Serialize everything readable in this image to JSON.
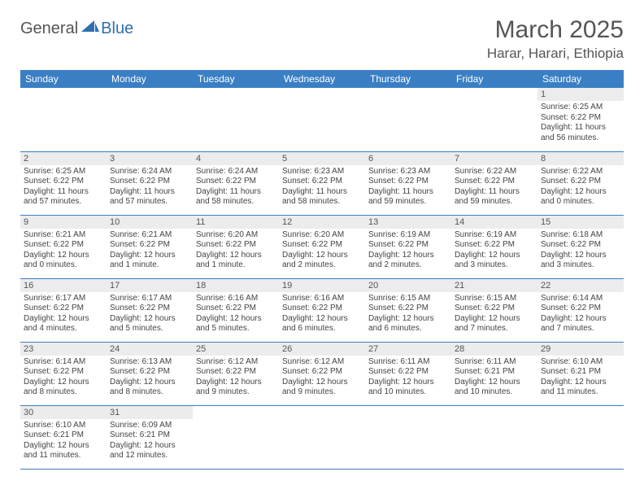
{
  "logo": {
    "text1": "General",
    "text2": "Blue",
    "color1": "#666666",
    "color2": "#2f6fb0"
  },
  "title": "March 2025",
  "location": "Harar, Harari, Ethiopia",
  "headerColor": "#3a7fc4",
  "dayHeaderBg": "#ececec",
  "days": [
    "Sunday",
    "Monday",
    "Tuesday",
    "Wednesday",
    "Thursday",
    "Friday",
    "Saturday"
  ],
  "weeks": [
    [
      null,
      null,
      null,
      null,
      null,
      null,
      {
        "n": "1",
        "sr": "6:25 AM",
        "ss": "6:22 PM",
        "dl": "11 hours and 56 minutes."
      }
    ],
    [
      {
        "n": "2",
        "sr": "6:25 AM",
        "ss": "6:22 PM",
        "dl": "11 hours and 57 minutes."
      },
      {
        "n": "3",
        "sr": "6:24 AM",
        "ss": "6:22 PM",
        "dl": "11 hours and 57 minutes."
      },
      {
        "n": "4",
        "sr": "6:24 AM",
        "ss": "6:22 PM",
        "dl": "11 hours and 58 minutes."
      },
      {
        "n": "5",
        "sr": "6:23 AM",
        "ss": "6:22 PM",
        "dl": "11 hours and 58 minutes."
      },
      {
        "n": "6",
        "sr": "6:23 AM",
        "ss": "6:22 PM",
        "dl": "11 hours and 59 minutes."
      },
      {
        "n": "7",
        "sr": "6:22 AM",
        "ss": "6:22 PM",
        "dl": "11 hours and 59 minutes."
      },
      {
        "n": "8",
        "sr": "6:22 AM",
        "ss": "6:22 PM",
        "dl": "12 hours and 0 minutes."
      }
    ],
    [
      {
        "n": "9",
        "sr": "6:21 AM",
        "ss": "6:22 PM",
        "dl": "12 hours and 0 minutes."
      },
      {
        "n": "10",
        "sr": "6:21 AM",
        "ss": "6:22 PM",
        "dl": "12 hours and 1 minute."
      },
      {
        "n": "11",
        "sr": "6:20 AM",
        "ss": "6:22 PM",
        "dl": "12 hours and 1 minute."
      },
      {
        "n": "12",
        "sr": "6:20 AM",
        "ss": "6:22 PM",
        "dl": "12 hours and 2 minutes."
      },
      {
        "n": "13",
        "sr": "6:19 AM",
        "ss": "6:22 PM",
        "dl": "12 hours and 2 minutes."
      },
      {
        "n": "14",
        "sr": "6:19 AM",
        "ss": "6:22 PM",
        "dl": "12 hours and 3 minutes."
      },
      {
        "n": "15",
        "sr": "6:18 AM",
        "ss": "6:22 PM",
        "dl": "12 hours and 3 minutes."
      }
    ],
    [
      {
        "n": "16",
        "sr": "6:17 AM",
        "ss": "6:22 PM",
        "dl": "12 hours and 4 minutes."
      },
      {
        "n": "17",
        "sr": "6:17 AM",
        "ss": "6:22 PM",
        "dl": "12 hours and 5 minutes."
      },
      {
        "n": "18",
        "sr": "6:16 AM",
        "ss": "6:22 PM",
        "dl": "12 hours and 5 minutes."
      },
      {
        "n": "19",
        "sr": "6:16 AM",
        "ss": "6:22 PM",
        "dl": "12 hours and 6 minutes."
      },
      {
        "n": "20",
        "sr": "6:15 AM",
        "ss": "6:22 PM",
        "dl": "12 hours and 6 minutes."
      },
      {
        "n": "21",
        "sr": "6:15 AM",
        "ss": "6:22 PM",
        "dl": "12 hours and 7 minutes."
      },
      {
        "n": "22",
        "sr": "6:14 AM",
        "ss": "6:22 PM",
        "dl": "12 hours and 7 minutes."
      }
    ],
    [
      {
        "n": "23",
        "sr": "6:14 AM",
        "ss": "6:22 PM",
        "dl": "12 hours and 8 minutes."
      },
      {
        "n": "24",
        "sr": "6:13 AM",
        "ss": "6:22 PM",
        "dl": "12 hours and 8 minutes."
      },
      {
        "n": "25",
        "sr": "6:12 AM",
        "ss": "6:22 PM",
        "dl": "12 hours and 9 minutes."
      },
      {
        "n": "26",
        "sr": "6:12 AM",
        "ss": "6:22 PM",
        "dl": "12 hours and 9 minutes."
      },
      {
        "n": "27",
        "sr": "6:11 AM",
        "ss": "6:22 PM",
        "dl": "12 hours and 10 minutes."
      },
      {
        "n": "28",
        "sr": "6:11 AM",
        "ss": "6:21 PM",
        "dl": "12 hours and 10 minutes."
      },
      {
        "n": "29",
        "sr": "6:10 AM",
        "ss": "6:21 PM",
        "dl": "12 hours and 11 minutes."
      }
    ],
    [
      {
        "n": "30",
        "sr": "6:10 AM",
        "ss": "6:21 PM",
        "dl": "12 hours and 11 minutes."
      },
      {
        "n": "31",
        "sr": "6:09 AM",
        "ss": "6:21 PM",
        "dl": "12 hours and 12 minutes."
      },
      null,
      null,
      null,
      null,
      null
    ]
  ],
  "labels": {
    "sunrise": "Sunrise:",
    "sunset": "Sunset:",
    "daylight": "Daylight:"
  }
}
